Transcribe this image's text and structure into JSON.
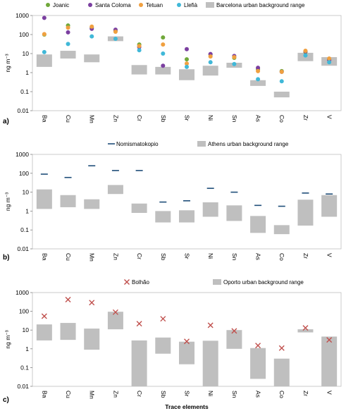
{
  "chart_data": [
    {
      "panel_label": "a)",
      "type": "scatter",
      "ylabel": "ng m⁻³",
      "yscale": "log",
      "ylim": [
        0.01,
        1000
      ],
      "ytick_labels": [
        "1000",
        "100",
        "10",
        "1",
        "0.1",
        "0.01"
      ],
      "categories": [
        "Ba",
        "Cu",
        "Mn",
        "Zn",
        "Cr",
        "Sb",
        "Sr",
        "Ni",
        "Sn",
        "As",
        "Co",
        "Zr",
        "V"
      ],
      "colors": {
        "Joanic": "#70a83a",
        "Santa Coloma": "#7b3fa0",
        "Tetuan": "#f0a040",
        "Llefià": "#40b8d8",
        "range": "#bfbfbf"
      },
      "legend": [
        "Joanic",
        "Santa Coloma",
        "Tetuan",
        "Llefià"
      ],
      "range_legend": "Barcelona urban background range",
      "series": [
        {
          "name": "Joanic",
          "values": [
            100,
            300,
            230,
            150,
            30,
            70,
            5,
            9,
            6,
            1.5,
            1.2,
            12,
            5
          ]
        },
        {
          "name": "Santa Coloma",
          "values": [
            750,
            130,
            200,
            180,
            22,
            2.3,
            17,
            9.5,
            7.5,
            1.8,
            1.1,
            13,
            4.5
          ]
        },
        {
          "name": "Tetuan",
          "values": [
            105,
            230,
            260,
            140,
            25,
            30,
            3,
            7,
            6.5,
            1.2,
            1.1,
            14,
            5.5
          ]
        },
        {
          "name": "Llefià",
          "values": [
            12,
            32,
            80,
            60,
            15,
            10,
            2,
            3.5,
            2.8,
            0.45,
            0.35,
            8,
            3.5
          ]
        }
      ],
      "ranges": [
        [
          2,
          9
        ],
        [
          5.5,
          14
        ],
        [
          3.5,
          9
        ],
        [
          45,
          80
        ],
        [
          0.8,
          2.5
        ],
        [
          0.8,
          2
        ],
        [
          0.4,
          1.5
        ],
        [
          0.7,
          2.3
        ],
        [
          1.8,
          3.3
        ],
        [
          0.2,
          0.4
        ],
        [
          0.05,
          0.1
        ],
        [
          4,
          11
        ],
        [
          2.3,
          6.5
        ]
      ]
    },
    {
      "panel_label": "b)",
      "type": "scatter",
      "ylabel": "ng m⁻³",
      "yscale": "log",
      "ylim": [
        0.01,
        1000
      ],
      "ytick_labels": [
        "1000",
        "100",
        "10",
        "1",
        "0.1",
        "0.01"
      ],
      "categories": [
        "Ba",
        "Cu",
        "Mn",
        "Zn",
        "Cr",
        "Sb",
        "Sr",
        "Ni",
        "Sn",
        "As",
        "Co",
        "Zr",
        "V"
      ],
      "colors": {
        "Nomismatokopio": "#1f4e79",
        "range": "#bfbfbf"
      },
      "legend": [
        "Nomismatokopio"
      ],
      "range_legend": "Athens urban background range",
      "series": [
        {
          "name": "Nomismatokopio",
          "values": [
            90,
            60,
            250,
            140,
            140,
            3,
            3.5,
            16,
            10,
            2,
            1.8,
            9,
            8
          ]
        }
      ],
      "ranges": [
        [
          1.3,
          14
        ],
        [
          1.6,
          7
        ],
        [
          1.3,
          4.2
        ],
        [
          8,
          24
        ],
        [
          0.8,
          2.5
        ],
        [
          0.25,
          1
        ],
        [
          0.25,
          1.1
        ],
        [
          0.5,
          2.9
        ],
        [
          0.3,
          2
        ],
        [
          0.07,
          0.55
        ],
        [
          0.06,
          0.18
        ],
        [
          0.17,
          4
        ],
        [
          0.5,
          7
        ]
      ]
    },
    {
      "panel_label": "c)",
      "type": "scatter",
      "ylabel": "ng m⁻³",
      "xlabel": "Trace elements",
      "yscale": "log",
      "ylim": [
        0.01,
        1000
      ],
      "ytick_labels": [
        "1000",
        "100",
        "10",
        "1",
        "0.1",
        "0.01"
      ],
      "categories": [
        "Ba",
        "Cu",
        "Mn",
        "Zn",
        "Cr",
        "Sb",
        "Sr",
        "Ni",
        "Sn",
        "As",
        "Co",
        "Zr",
        "V"
      ],
      "colors": {
        "Bolhão": "#c0504d",
        "range": "#bfbfbf"
      },
      "legend": [
        "Bolhão"
      ],
      "range_legend": "Oporto urban background range",
      "series": [
        {
          "name": "Bolhão",
          "values": [
            55,
            420,
            290,
            90,
            22,
            40,
            2.5,
            18,
            9,
            1.5,
            1.1,
            13,
            3
          ]
        }
      ],
      "ranges": [
        [
          2.8,
          20
        ],
        [
          3,
          24
        ],
        [
          0.9,
          12
        ],
        [
          11,
          95
        ],
        [
          0.01,
          2.8
        ],
        [
          0.55,
          4
        ],
        [
          0.15,
          2.4
        ],
        [
          0.01,
          2.7
        ],
        [
          1,
          10
        ],
        [
          0.025,
          1.1
        ],
        [
          0.01,
          0.3
        ],
        [
          7.5,
          11
        ],
        [
          0.01,
          4.5
        ]
      ]
    }
  ]
}
